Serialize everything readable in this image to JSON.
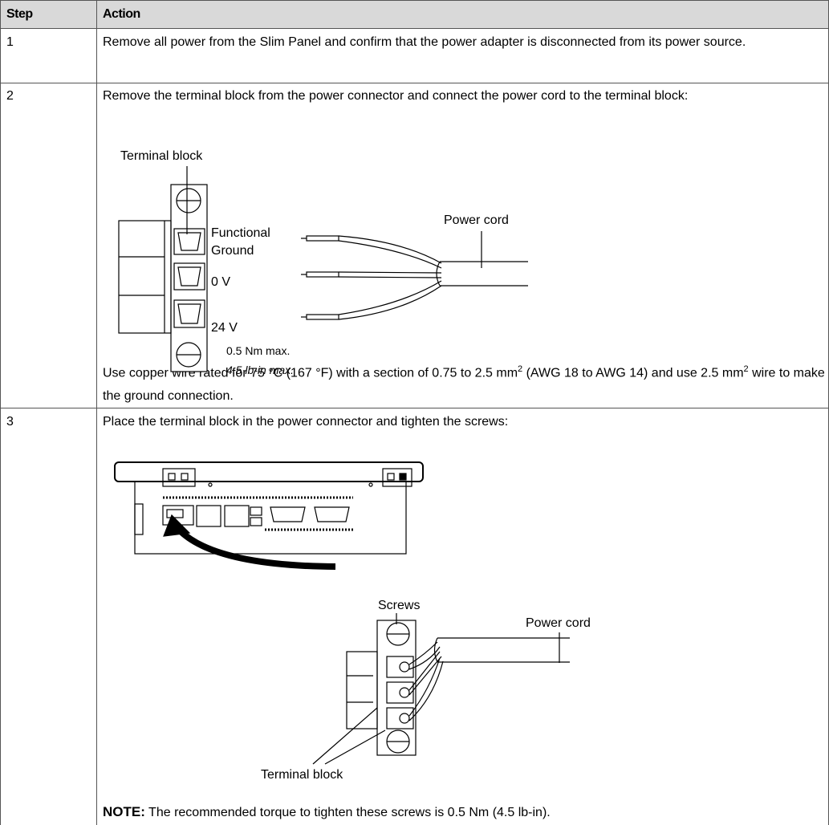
{
  "header": {
    "step": "Step",
    "action": "Action"
  },
  "rows": [
    {
      "step": "1",
      "text": "Remove all power from the Slim Panel and confirm that the power adapter is disconnected from its power source."
    },
    {
      "step": "2",
      "text": "Remove the terminal block from the power connector and connect the power cord to the terminal block:",
      "figure": {
        "terminal_block": "Terminal block",
        "functional": "Functional",
        "ground": "Ground",
        "zero_v": "0 V",
        "twentyfour_v": "24 V",
        "torque_nm": "0.5 Nm max.",
        "torque_lbin": "4.5 lb-in max.",
        "power_cord": "Power cord"
      },
      "note_parts": [
        "Use copper wire rated for 75 °C (167 °F) with a section of 0.75 to 2.5 mm",
        "2",
        " (AWG 18 to AWG 14) and use 2.5 mm",
        "2",
        " wire to make the ground connection."
      ]
    },
    {
      "step": "3",
      "text": "Place the terminal block in the power connector and tighten the screws:",
      "figure": {
        "screws": "Screws",
        "power_cord": "Power cord",
        "terminal_block": "Terminal block"
      },
      "note_label": "NOTE:",
      "note_text": " The recommended torque to tighten these screws is 0.5 Nm (4.5 lb-in)."
    }
  ]
}
